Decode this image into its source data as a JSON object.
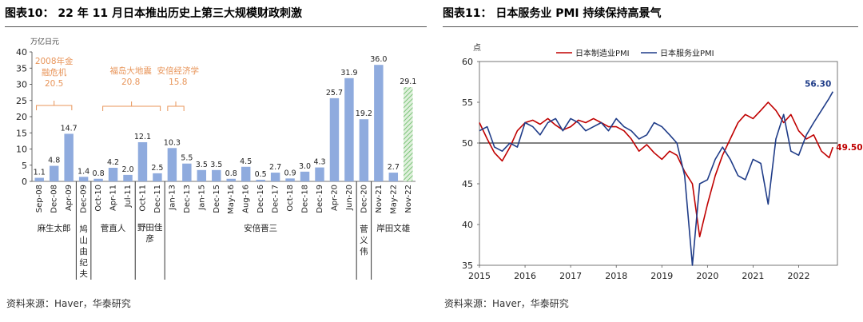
{
  "left": {
    "title": "图表10：  22 年 11 月日本推出历史上第三大规模财政刺激",
    "source": "资料来源：Haver，华泰研究",
    "chart_data": {
      "type": "bar",
      "ylabel": "万亿日元",
      "ylim": [
        0,
        40
      ],
      "yticks": [
        "0",
        "5",
        "10",
        "15",
        "20",
        "25",
        "30",
        "35",
        "40"
      ],
      "categories": [
        "Sep-08",
        "Dec-08",
        "Apr-09",
        "Dec-09",
        "Oct-10",
        "Apr-11",
        "Jul-11",
        "Oct-11",
        "Dec-11",
        "Jan-13",
        "Dec-13",
        "Jan-15",
        "Dec-15",
        "May-16",
        "Aug-16",
        "Dec-16",
        "Dec-17",
        "Oct-18",
        "Dec-18",
        "Dec-19",
        "Apr-20",
        "Jun-20",
        "Dec-20",
        "Nov-21",
        "May-22",
        "Nov-22"
      ],
      "values": [
        1.1,
        4.8,
        14.7,
        1.4,
        0.8,
        4.2,
        2.0,
        12.1,
        2.5,
        10.3,
        5.5,
        3.5,
        3.5,
        0.8,
        4.5,
        0.5,
        2.7,
        0.9,
        3.0,
        4.3,
        25.7,
        31.9,
        19.2,
        36.0,
        2.7,
        29.1
      ],
      "value_labels": [
        "1.1",
        "4.8",
        "14.7",
        "1.4",
        "0.8",
        "4.2",
        "2.0",
        "12.1",
        "2.5",
        "10.3",
        "5.5",
        "3.5",
        "3.5",
        "0.8",
        "4.5",
        "0.5",
        "2.7",
        "0.9",
        "3.0",
        "4.3",
        "25.7",
        "31.9",
        "19.2",
        "36.0",
        "2.7",
        "29.1"
      ],
      "bar_color": "#8fabde",
      "hatched_last_color": "#7cc47a",
      "annotations": [
        {
          "lines": [
            "2008年金",
            "融危机",
            "20.5"
          ]
        },
        {
          "lines": [
            "福岛大地震",
            "20.8"
          ]
        },
        {
          "lines": [
            "安倍经济学",
            "15.8"
          ]
        }
      ],
      "annotation_color": "#e8955a",
      "pm_groups": [
        {
          "label": "麻生太郎",
          "vertical": false
        },
        {
          "label": "鸠山由纪夫",
          "vertical": true
        },
        {
          "label": "菅直人",
          "vertical": false
        },
        {
          "label": "野田佳彦",
          "vertical": false
        },
        {
          "label": "安倍晋三",
          "vertical": false
        },
        {
          "label": "菅义伟",
          "vertical": true
        },
        {
          "label": "岸田文雄",
          "vertical": false
        }
      ]
    }
  },
  "right": {
    "title": "图表11：  日本服务业 PMI 持续保持高景气",
    "source": "资料来源：Haver，华泰研究",
    "chart_data": {
      "type": "line",
      "ylabel": "点",
      "ylim": [
        35,
        60
      ],
      "yticks": [
        "35",
        "40",
        "45",
        "50",
        "55",
        "60"
      ],
      "xlim": [
        2015,
        2022.85
      ],
      "xticks": [
        "2015",
        "2016",
        "2017",
        "2018",
        "2019",
        "2020",
        "2021",
        "2022"
      ],
      "reference_line": 50,
      "series": [
        {
          "name": "日本制造业PMI",
          "color": "#c00000",
          "end_label": "49.50",
          "x": [
            2015.0,
            2015.17,
            2015.33,
            2015.5,
            2015.67,
            2015.83,
            2016.0,
            2016.17,
            2016.33,
            2016.5,
            2016.67,
            2016.83,
            2017.0,
            2017.17,
            2017.33,
            2017.5,
            2017.67,
            2017.83,
            2018.0,
            2018.17,
            2018.33,
            2018.5,
            2018.67,
            2018.83,
            2019.0,
            2019.17,
            2019.33,
            2019.5,
            2019.67,
            2019.83,
            2020.0,
            2020.17,
            2020.33,
            2020.5,
            2020.67,
            2020.83,
            2021.0,
            2021.17,
            2021.33,
            2021.5,
            2021.67,
            2021.83,
            2022.0,
            2022.17,
            2022.33,
            2022.5,
            2022.67,
            2022.75
          ],
          "y": [
            52.5,
            50.5,
            48.8,
            47.8,
            49.5,
            51.5,
            52.5,
            52.8,
            52.3,
            53.0,
            52.2,
            51.6,
            52.0,
            52.8,
            52.5,
            53.0,
            52.5,
            52.0,
            52.0,
            51.5,
            50.5,
            49.0,
            49.8,
            48.8,
            48.0,
            49.0,
            48.5,
            46.5,
            45.0,
            38.5,
            42.5,
            46.0,
            48.5,
            50.5,
            52.5,
            53.5,
            53.0,
            54.0,
            55.0,
            54.0,
            52.5,
            53.5,
            51.5,
            50.5,
            51.0,
            49.0,
            48.2,
            49.5
          ]
        },
        {
          "name": "日本服务业PMI",
          "color": "#1f3c88",
          "end_label": "56.30",
          "x": [
            2015.0,
            2015.17,
            2015.33,
            2015.5,
            2015.67,
            2015.83,
            2016.0,
            2016.17,
            2016.33,
            2016.5,
            2016.67,
            2016.83,
            2017.0,
            2017.17,
            2017.33,
            2017.5,
            2017.67,
            2017.83,
            2018.0,
            2018.17,
            2018.33,
            2018.5,
            2018.67,
            2018.83,
            2019.0,
            2019.17,
            2019.33,
            2019.5,
            2019.67,
            2019.83,
            2020.0,
            2020.17,
            2020.33,
            2020.5,
            2020.67,
            2020.83,
            2021.0,
            2021.17,
            2021.33,
            2021.5,
            2021.67,
            2021.83,
            2022.0,
            2022.17,
            2022.33,
            2022.5,
            2022.67,
            2022.75
          ],
          "y": [
            51.5,
            52.0,
            49.5,
            49.0,
            50.0,
            49.5,
            52.5,
            52.0,
            51.0,
            52.5,
            53.0,
            51.5,
            53.0,
            52.5,
            51.5,
            52.0,
            52.5,
            51.5,
            53.0,
            52.0,
            51.5,
            50.5,
            51.0,
            52.5,
            52.0,
            51.0,
            50.0,
            46.0,
            35.0,
            45.0,
            45.5,
            48.0,
            49.5,
            48.0,
            46.0,
            45.5,
            48.0,
            47.5,
            42.5,
            50.5,
            53.5,
            49.0,
            48.5,
            51.0,
            52.5,
            54.0,
            55.5,
            56.3
          ]
        }
      ]
    }
  }
}
